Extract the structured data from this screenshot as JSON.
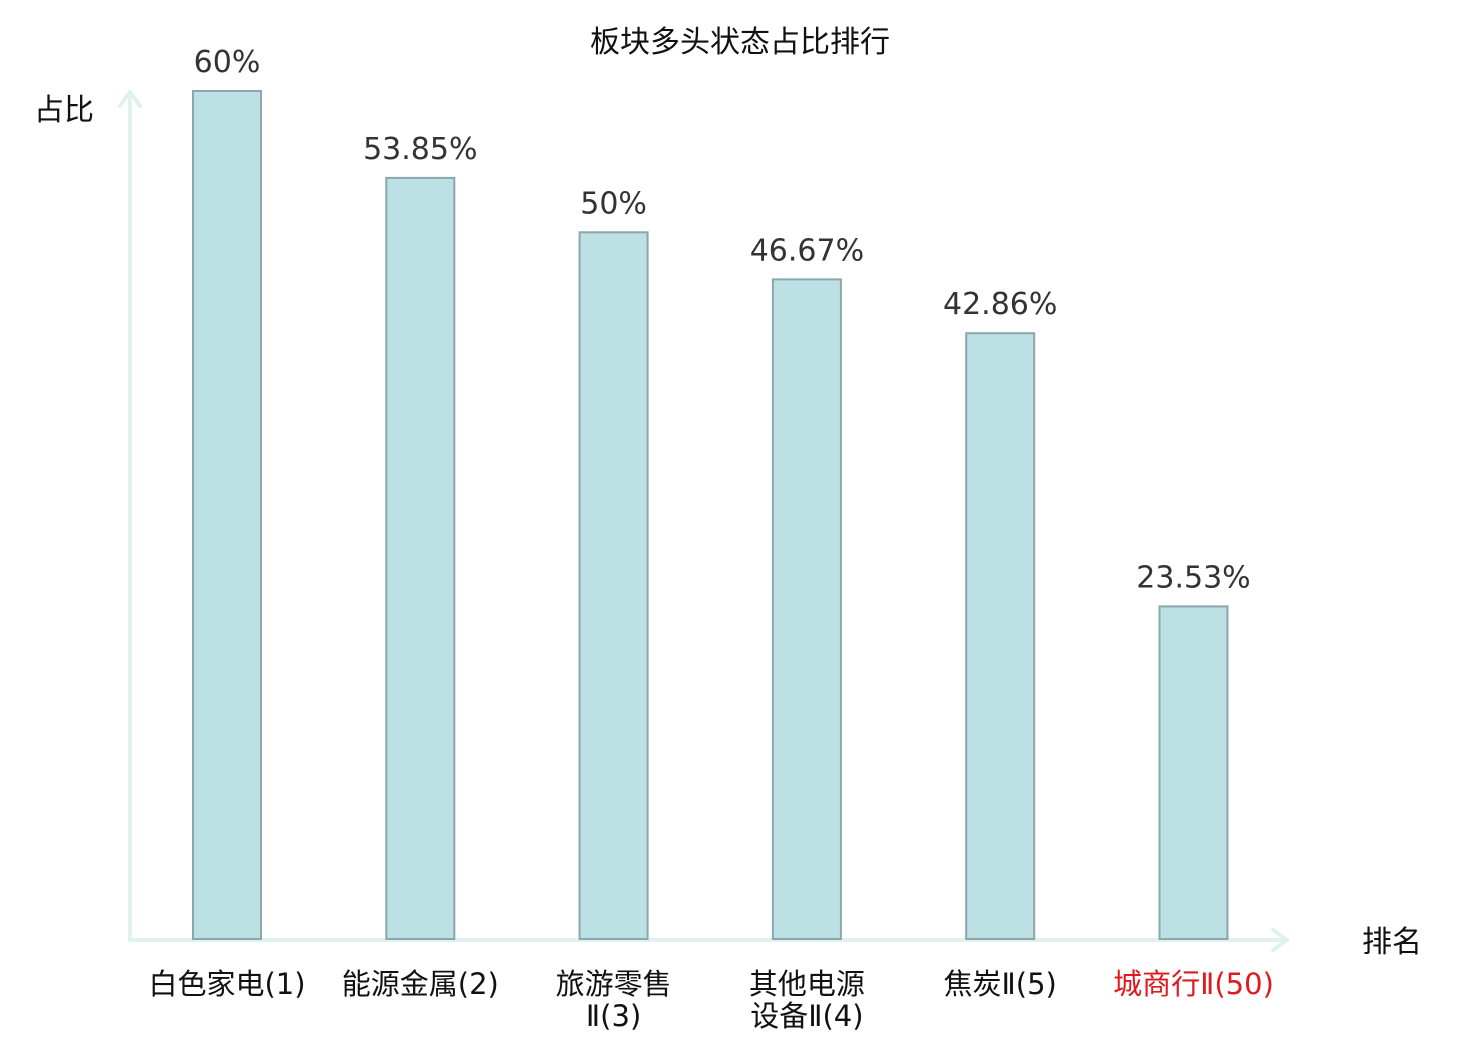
{
  "chart_data": {
    "type": "bar",
    "title": "板块多头状态占比排行",
    "ylabel": "占比",
    "xlabel": "排名",
    "ylim": [
      0,
      60
    ],
    "grid": false,
    "categories": [
      [
        "白色家电(1)"
      ],
      [
        "能源金属(2)"
      ],
      [
        "旅游零售",
        "Ⅱ(3)"
      ],
      [
        "其他电源",
        "设备Ⅱ(4)"
      ],
      [
        "焦炭Ⅱ(5)"
      ],
      [
        "城商行Ⅱ(50)"
      ]
    ],
    "values": [
      60,
      53.85,
      50,
      46.67,
      42.86,
      23.53
    ],
    "value_labels": [
      "60%",
      "53.85%",
      "50%",
      "46.67%",
      "42.86%",
      "23.53%"
    ],
    "highlight_index": 5
  },
  "colors": {
    "bar_fill": "#bce0e3",
    "bar_stroke": "#8aa7ab",
    "axis": "#dff2ef",
    "text": "#111111",
    "value_text": "#333333",
    "highlight_text": "#e0191d"
  }
}
